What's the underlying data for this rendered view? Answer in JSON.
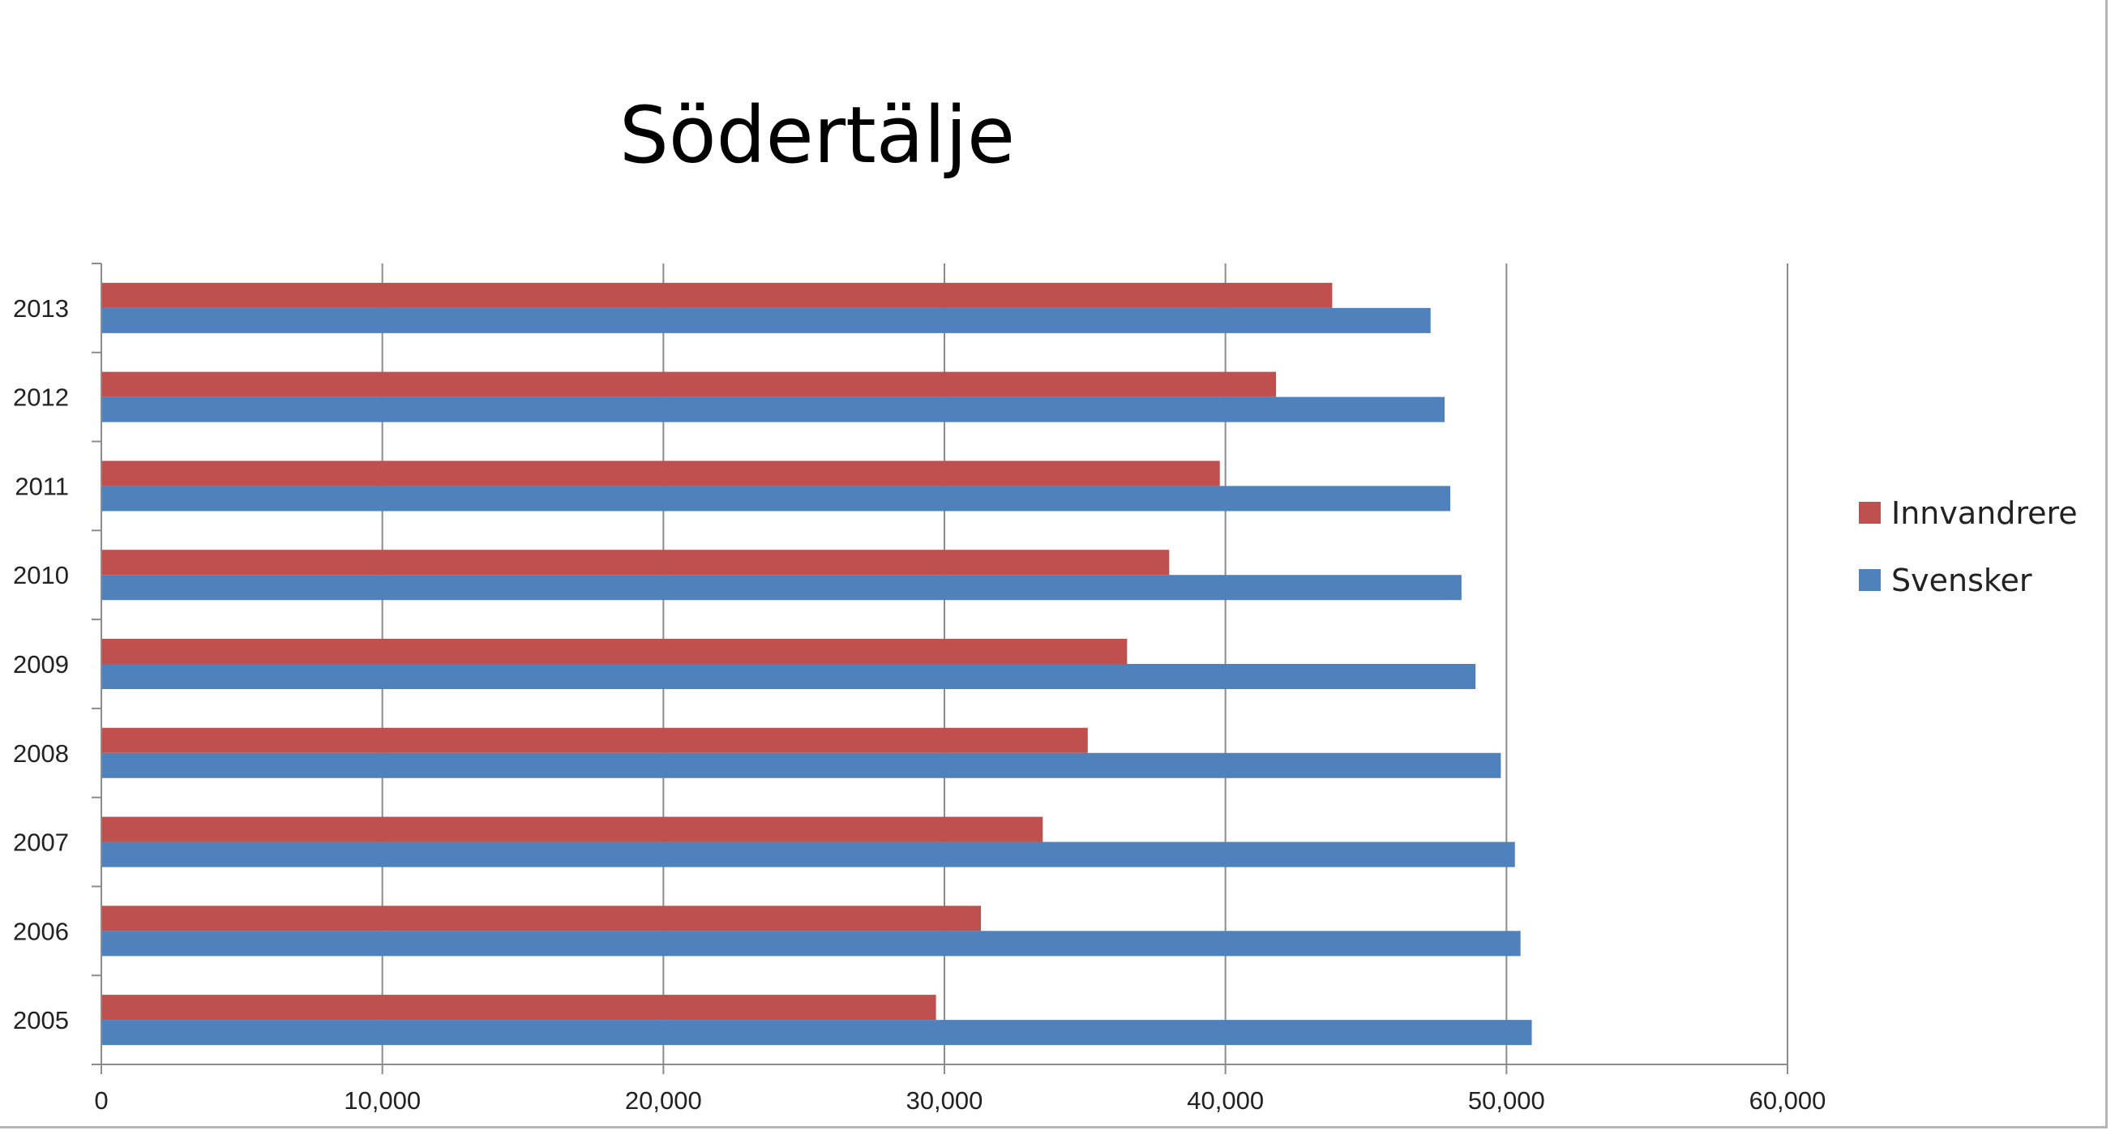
{
  "chart_data": {
    "type": "bar",
    "orientation": "horizontal",
    "title": "Södertälje",
    "xlabel": "",
    "ylabel": "",
    "xlim": [
      0,
      60000
    ],
    "x_ticks": [
      0,
      10000,
      20000,
      30000,
      40000,
      50000,
      60000
    ],
    "x_tick_labels": [
      "0",
      "10,000",
      "20,000",
      "30,000",
      "40,000",
      "50,000",
      "60,000"
    ],
    "categories": [
      "2013",
      "2012",
      "2011",
      "2010",
      "2009",
      "2008",
      "2007",
      "2006",
      "2005"
    ],
    "series": [
      {
        "name": "Innvandrere",
        "color": "#c0504d",
        "values": [
          43800,
          41800,
          39800,
          38000,
          36500,
          35100,
          33500,
          31300,
          29700
        ]
      },
      {
        "name": "Svensker",
        "color": "#4f81bd",
        "values": [
          47300,
          47800,
          48000,
          48400,
          48900,
          49800,
          50300,
          50500,
          50900
        ]
      }
    ],
    "grid": {
      "vertical": true,
      "horizontal": false
    },
    "legend": {
      "position": "right"
    }
  }
}
